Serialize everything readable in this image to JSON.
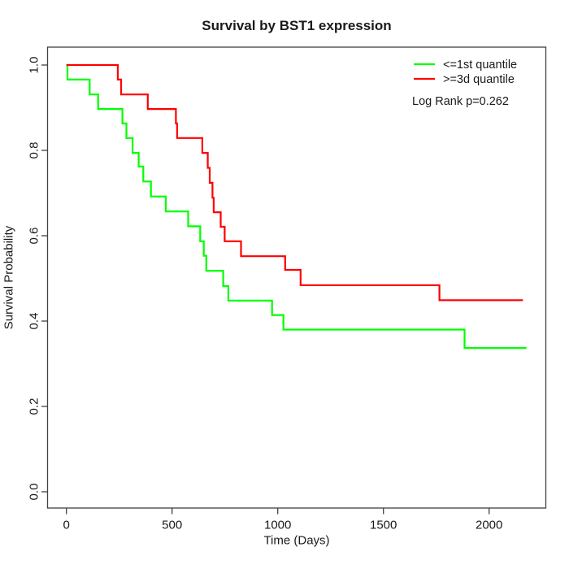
{
  "title": "Survival by BST1 expression",
  "axes": {
    "x": {
      "label": "Time (Days)",
      "ticks": [
        0,
        500,
        1000,
        1500,
        2000
      ]
    },
    "y": {
      "label": "Survival Probability",
      "ticks": [
        "0.0",
        "0.2",
        "0.4",
        "0.6",
        "0.8",
        "1.0"
      ]
    }
  },
  "legend": {
    "items": [
      {
        "label": "<=1st quantile",
        "color": "#00ff00"
      },
      {
        "label": ">=3d quantile",
        "color": "#ff0000"
      }
    ],
    "note": "Log Rank p=0.262"
  },
  "chart_data": {
    "type": "line",
    "subtype": "kaplan-meier-step",
    "title": "Survival by BST1 expression",
    "xlabel": "Time (Days)",
    "ylabel": "Survival Probability",
    "xlim": [
      0,
      2268
    ],
    "ylim": [
      0,
      1.0
    ],
    "grid": false,
    "legend_position": "top-right",
    "annotation": "Log Rank p=0.262",
    "series": [
      {
        "name": "<=1st quantile",
        "color": "#00ff00",
        "start": [
          0,
          1.0
        ],
        "end_t": 2177,
        "steps": [
          [
            5,
            0.966
          ],
          [
            110,
            0.931
          ],
          [
            150,
            0.897
          ],
          [
            265,
            0.863
          ],
          [
            284,
            0.829
          ],
          [
            313,
            0.794
          ],
          [
            342,
            0.762
          ],
          [
            364,
            0.727
          ],
          [
            400,
            0.692
          ],
          [
            470,
            0.657
          ],
          [
            576,
            0.622
          ],
          [
            633,
            0.587
          ],
          [
            650,
            0.553
          ],
          [
            662,
            0.518
          ],
          [
            742,
            0.482
          ],
          [
            766,
            0.448
          ],
          [
            973,
            0.414
          ],
          [
            1027,
            0.38
          ],
          [
            1884,
            0.337
          ]
        ]
      },
      {
        "name": ">=3d quantile",
        "color": "#ff0000",
        "start": [
          0,
          1.0
        ],
        "end_t": 2160,
        "steps": [
          [
            243,
            0.966
          ],
          [
            259,
            0.931
          ],
          [
            385,
            0.897
          ],
          [
            518,
            0.863
          ],
          [
            524,
            0.829
          ],
          [
            643,
            0.794
          ],
          [
            669,
            0.759
          ],
          [
            678,
            0.724
          ],
          [
            691,
            0.689
          ],
          [
            697,
            0.655
          ],
          [
            730,
            0.621
          ],
          [
            749,
            0.587
          ],
          [
            826,
            0.552
          ],
          [
            1035,
            0.52
          ],
          [
            1108,
            0.484
          ],
          [
            1765,
            0.449
          ]
        ]
      }
    ]
  }
}
